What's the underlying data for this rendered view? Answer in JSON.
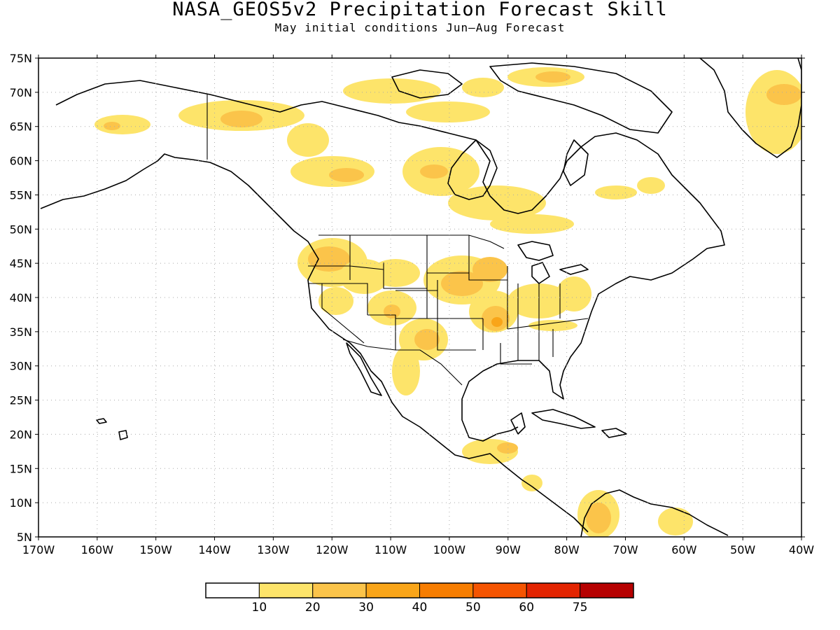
{
  "title": "NASA_GEOS5v2 Precipitation Forecast Skill",
  "subtitle": "May initial conditions  Jun—Aug Forecast",
  "map": {
    "lon_range": [
      -170,
      -40
    ],
    "lat_range": [
      5,
      75
    ],
    "lat_labels": [
      "75N",
      "70N",
      "65N",
      "60N",
      "55N",
      "50N",
      "45N",
      "40N",
      "35N",
      "30N",
      "25N",
      "20N",
      "15N",
      "10N",
      "5N"
    ],
    "lon_labels": [
      "170W",
      "160W",
      "150W",
      "140W",
      "130W",
      "120W",
      "110W",
      "100W",
      "90W",
      "80W",
      "70W",
      "60W",
      "50W",
      "40W"
    ],
    "gridlines": "dotted",
    "land_outline_color": "#000000"
  },
  "colorbar": {
    "colors": [
      "#ffffff",
      "#fde46a",
      "#fbc44a",
      "#f9a519",
      "#f77d00",
      "#f55400",
      "#e32400",
      "#b60000"
    ],
    "labels": [
      "10",
      "20",
      "30",
      "40",
      "50",
      "60",
      "75"
    ]
  },
  "skill_regions_colors": {
    "c1": "#fde46a",
    "c2": "#fbc44a",
    "c3": "#f9a519"
  }
}
